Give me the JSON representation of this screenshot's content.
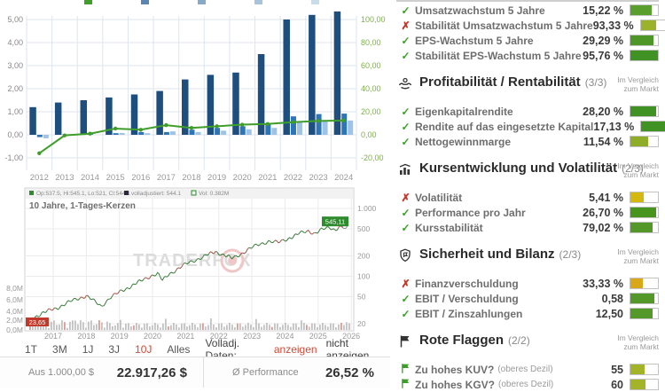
{
  "colors": {
    "bar_dark": "#1d4e7e",
    "bar_mid": "#2e75b6",
    "bar_light": "#9dc3e6",
    "growth_line": "#3f9d2a",
    "right_axis_text": "#7fae4e",
    "axis_text": "#888888",
    "grid": "#dde6ee",
    "price_grid": "#ebebeb",
    "accent_orange": "#cc4b37",
    "tag_red": "#c0392b",
    "tag_green": "#2e8b2e",
    "watermark": "#dcdcdc"
  },
  "chart_data": [
    {
      "type": "bar",
      "title": "",
      "categories": [
        "2012",
        "2013",
        "2014",
        "2015",
        "2016",
        "2017",
        "2018",
        "2019",
        "2020",
        "2021",
        "2022",
        "2023",
        "2024"
      ],
      "series": [
        {
          "name": "value-per-share-dark",
          "axis": "left",
          "color": "#1d4e7e",
          "values": [
            1.2,
            1.4,
            1.5,
            1.62,
            1.75,
            1.9,
            2.4,
            2.6,
            2.7,
            3.5,
            5.0,
            5.2,
            5.35
          ]
        },
        {
          "name": "value-per-share-mid",
          "axis": "left",
          "color": "#2e75b6",
          "values": [
            -0.1,
            0.02,
            0.03,
            0.07,
            0.12,
            0.12,
            0.22,
            0.3,
            0.37,
            0.45,
            0.8,
            0.9,
            0.92
          ]
        },
        {
          "name": "value-per-share-light",
          "axis": "left",
          "color": "#9dc3e6",
          "values": [
            -0.15,
            0.0,
            0.0,
            0.08,
            0.07,
            0.15,
            0.12,
            0.18,
            0.24,
            0.3,
            0.55,
            0.6,
            0.62
          ]
        },
        {
          "name": "growth-line",
          "axis": "right",
          "color": "#3f9d2a",
          "values": [
            -16,
            -0.5,
            1,
            5.4,
            4.4,
            8.4,
            6,
            7.4,
            8.8,
            9.4,
            11,
            12,
            12.4
          ]
        }
      ],
      "left_ticks": [
        "5,00",
        "4,00",
        "3,00",
        "2,00",
        "1,00",
        "0,00",
        "-1,00"
      ],
      "right_ticks": [
        "100,00",
        "80,00",
        "60,00",
        "40,00",
        "20,00",
        "0,00",
        "-20,00"
      ],
      "ylim_left": [
        -1.5,
        5.5
      ],
      "ylim_right": [
        -30,
        110
      ],
      "grid": true,
      "legend_position": "top-cropped"
    },
    {
      "type": "line",
      "title": "10 Jahre, 1-Tages-Kerzen",
      "legend": [
        "Op:537.5, Hi:545.1, Lo:521, Cl:544.1",
        "volladjustiert: 544.1",
        "Vol: 0.382M"
      ],
      "watermark": "TRADERFOX",
      "x_ticks": [
        "2017",
        "2018",
        "2019",
        "2020",
        "2021",
        "2022",
        "2023",
        "2024",
        "2025",
        "2026"
      ],
      "price_ticks_right": [
        "1.000",
        "500",
        "200",
        "100",
        "50",
        "20"
      ],
      "volume_ticks_left": [
        "8,0M",
        "6,0M",
        "4,0M",
        "2,0M",
        "0,0M"
      ],
      "price_axis_log_range": [
        20,
        1000
      ],
      "first_price_label": "23,65",
      "last_price_label": "545,11",
      "price_points": [
        [
          2016.35,
          24
        ],
        [
          2016.7,
          29
        ],
        [
          2017.1,
          34
        ],
        [
          2017.5,
          42
        ],
        [
          2017.8,
          48
        ],
        [
          2018.0,
          52
        ],
        [
          2018.2,
          44
        ],
        [
          2018.45,
          36
        ],
        [
          2018.7,
          48
        ],
        [
          2019.0,
          58
        ],
        [
          2019.35,
          72
        ],
        [
          2019.65,
          85
        ],
        [
          2019.95,
          102
        ],
        [
          2020.15,
          110
        ],
        [
          2020.3,
          86
        ],
        [
          2020.5,
          108
        ],
        [
          2020.75,
          128
        ],
        [
          2021.0,
          150
        ],
        [
          2021.3,
          175
        ],
        [
          2021.6,
          200
        ],
        [
          2021.9,
          230
        ],
        [
          2022.1,
          212
        ],
        [
          2022.4,
          182
        ],
        [
          2022.65,
          212
        ],
        [
          2022.9,
          250
        ],
        [
          2023.2,
          292
        ],
        [
          2023.5,
          330
        ],
        [
          2023.8,
          312
        ],
        [
          2024.1,
          362
        ],
        [
          2024.4,
          420
        ],
        [
          2024.7,
          465
        ],
        [
          2024.9,
          432
        ],
        [
          2025.1,
          482
        ],
        [
          2025.35,
          520
        ],
        [
          2025.5,
          492
        ],
        [
          2025.65,
          530
        ],
        [
          2025.8,
          545
        ]
      ]
    }
  ],
  "range_bar": {
    "buttons": [
      "1T",
      "3M",
      "1J",
      "3J",
      "10J",
      "Alles"
    ],
    "active": "10J",
    "volladj_label": "Volladj. Daten:",
    "anzeigen": "anzeigen",
    "nicht_anzeigen": "nicht anzeigen"
  },
  "stats_row": {
    "invested_label": "Aus 1.000,00 $",
    "invested_value": "22.917,26 $",
    "performance_label": "Ø Performance",
    "performance_value": "26,52 %"
  },
  "right_panel": {
    "compare_note": "Im Vergleich zum Markt",
    "sections": [
      {
        "title": "",
        "score": "",
        "icon": "",
        "rows": [
          {
            "status": "check",
            "label": "Umsatzwachstum 5 Jahre",
            "suffix": "",
            "value": "15,22 %",
            "bar_pct": 78,
            "bar_color": "#5a9e2d"
          },
          {
            "status": "cross",
            "label": "Stabilität Umsatzwachstum 5 Jahre",
            "suffix": "",
            "value": "93,33 %",
            "bar_pct": 55,
            "bar_color": "#9ab32a"
          },
          {
            "status": "check",
            "label": "EPS-Wachstum 5 Jahre",
            "suffix": "",
            "value": "29,29 %",
            "bar_pct": 85,
            "bar_color": "#4d9627"
          },
          {
            "status": "check",
            "label": "Stabilität EPS-Wachstum 5 Jahre",
            "suffix": "",
            "value": "95,76 %",
            "bar_pct": 100,
            "bar_color": "#3f9223"
          }
        ]
      },
      {
        "title": "Profitabilität / Rentabilität",
        "score": "(3/3)",
        "icon": "hands-icon",
        "rows": [
          {
            "status": "check",
            "label": "Eigenkapitalrendite",
            "suffix": "",
            "value": "28,20 %",
            "bar_pct": 92,
            "bar_color": "#3f9223"
          },
          {
            "status": "check",
            "label": "Rendite auf das eingesetzte Kapital",
            "suffix": "",
            "value": "17,13 %",
            "bar_pct": 100,
            "bar_color": "#3f9223"
          },
          {
            "status": "check",
            "label": "Nettogewinnmarge",
            "suffix": "",
            "value": "11,54 %",
            "bar_pct": 66,
            "bar_color": "#8fad28"
          }
        ]
      },
      {
        "title": "Kursentwicklung und Volatilität",
        "score": "(2/3)",
        "icon": "chart-icon",
        "rows": [
          {
            "status": "cross",
            "label": "Volatilität",
            "suffix": "",
            "value": "5,41 %",
            "bar_pct": 48,
            "bar_color": "#d4b70f"
          },
          {
            "status": "check",
            "label": "Performance pro Jahr",
            "suffix": "",
            "value": "26,70 %",
            "bar_pct": 92,
            "bar_color": "#47941f"
          },
          {
            "status": "check",
            "label": "Kursstabilität",
            "suffix": "",
            "value": "79,02 %",
            "bar_pct": 82,
            "bar_color": "#55982a"
          }
        ]
      },
      {
        "title": "Sicherheit und Bilanz",
        "score": "(2/3)",
        "icon": "shield-icon",
        "rows": [
          {
            "status": "cross",
            "label": "Finanzverschuldung",
            "suffix": "",
            "value": "33,33 %",
            "bar_pct": 45,
            "bar_color": "#d9a71a"
          },
          {
            "status": "check",
            "label": "EBIT / Verschuldung",
            "suffix": "",
            "value": "0,58",
            "bar_pct": 88,
            "bar_color": "#55982a"
          },
          {
            "status": "check",
            "label": "EBIT / Zinszahlungen",
            "suffix": "",
            "value": "12,50",
            "bar_pct": 80,
            "bar_color": "#55982a"
          }
        ]
      },
      {
        "title": "Rote Flaggen",
        "score": "(2/2)",
        "icon": "flag-icon",
        "rows": [
          {
            "status": "flag",
            "label": "Zu hohes KUV?",
            "suffix": "(oberes Dezil)",
            "value": "55",
            "bar_pct": 50,
            "bar_color": "#a3b42a"
          },
          {
            "status": "flag",
            "label": "Zu hohes KGV?",
            "suffix": "(oberes Dezil)",
            "value": "60",
            "bar_pct": 55,
            "bar_color": "#a3b42a"
          }
        ]
      }
    ]
  }
}
